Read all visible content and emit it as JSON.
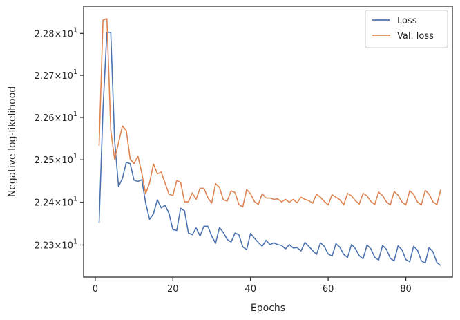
{
  "chart_data": {
    "type": "line",
    "xlabel": "Epochs",
    "ylabel": "Negative log-likelihood",
    "xlim": [
      -3,
      92
    ],
    "ylim": [
      22.225,
      22.865
    ],
    "y_scale": "log",
    "grid": false,
    "legend_position": "top-right",
    "x_ticks": [
      {
        "value": 0,
        "label": "0"
      },
      {
        "value": 20,
        "label": "20"
      },
      {
        "value": 40,
        "label": "40"
      },
      {
        "value": 60,
        "label": "60"
      },
      {
        "value": 80,
        "label": "80"
      }
    ],
    "y_ticks": [
      {
        "value": 22.3,
        "mantissa": "2.23",
        "base": "10",
        "exp": "1"
      },
      {
        "value": 22.4,
        "mantissa": "2.24",
        "base": "10",
        "exp": "1"
      },
      {
        "value": 22.5,
        "mantissa": "2.25",
        "base": "10",
        "exp": "1"
      },
      {
        "value": 22.6,
        "mantissa": "2.26",
        "base": "10",
        "exp": "1"
      },
      {
        "value": 22.7,
        "mantissa": "2.27",
        "base": "10",
        "exp": "1"
      },
      {
        "value": 22.8,
        "mantissa": "2.28",
        "base": "10",
        "exp": "1"
      }
    ],
    "series": [
      {
        "name": "Loss",
        "color": "#4c72b0",
        "x": [
          1,
          2,
          3,
          4,
          5,
          6,
          7,
          8,
          9,
          10,
          11,
          12,
          13,
          14,
          15,
          16,
          17,
          18,
          19,
          20,
          21,
          22,
          23,
          24,
          25,
          26,
          27,
          28,
          29,
          30,
          31,
          32,
          33,
          34,
          35,
          36,
          37,
          38,
          39,
          40,
          41,
          42,
          43,
          44,
          45,
          46,
          47,
          48,
          49,
          50,
          51,
          52,
          53,
          54,
          55,
          56,
          57,
          58,
          59,
          60,
          61,
          62,
          63,
          64,
          65,
          66,
          67,
          68,
          69,
          70,
          71,
          72,
          73,
          74,
          75,
          76,
          77,
          78,
          79,
          80,
          81,
          82,
          83,
          84,
          85,
          86,
          87,
          88,
          89
        ],
        "y": [
          22.352,
          22.62,
          22.803,
          22.802,
          22.545,
          22.437,
          22.456,
          22.494,
          22.491,
          22.452,
          22.449,
          22.453,
          22.398,
          22.36,
          22.373,
          22.406,
          22.387,
          22.393,
          22.374,
          22.336,
          22.334,
          22.386,
          22.38,
          22.328,
          22.324,
          22.34,
          22.321,
          22.344,
          22.344,
          22.321,
          22.304,
          22.341,
          22.329,
          22.313,
          22.307,
          22.328,
          22.324,
          22.296,
          22.289,
          22.327,
          22.316,
          22.306,
          22.297,
          22.311,
          22.301,
          22.305,
          22.301,
          22.299,
          22.291,
          22.301,
          22.293,
          22.294,
          22.286,
          22.306,
          22.297,
          22.287,
          22.278,
          22.305,
          22.297,
          22.279,
          22.274,
          22.303,
          22.295,
          22.278,
          22.271,
          22.301,
          22.292,
          22.275,
          22.268,
          22.3,
          22.291,
          22.271,
          22.265,
          22.299,
          22.29,
          22.269,
          22.263,
          22.298,
          22.289,
          22.266,
          22.261,
          22.297,
          22.288,
          22.263,
          22.258,
          22.294,
          22.284,
          22.259,
          22.252
        ]
      },
      {
        "name": "Val. loss",
        "color": "#dd8452",
        "x": [
          1,
          2,
          3,
          4,
          5,
          6,
          7,
          8,
          9,
          10,
          11,
          12,
          13,
          14,
          15,
          16,
          17,
          18,
          19,
          20,
          21,
          22,
          23,
          24,
          25,
          26,
          27,
          28,
          29,
          30,
          31,
          32,
          33,
          34,
          35,
          36,
          37,
          38,
          39,
          40,
          41,
          42,
          43,
          44,
          45,
          46,
          47,
          48,
          49,
          50,
          51,
          52,
          53,
          54,
          55,
          56,
          57,
          58,
          59,
          60,
          61,
          62,
          63,
          64,
          65,
          66,
          67,
          68,
          69,
          70,
          71,
          72,
          73,
          74,
          75,
          76,
          77,
          78,
          79,
          80,
          81,
          82,
          83,
          84,
          85,
          86,
          87,
          88,
          89
        ],
        "y": [
          22.533,
          22.832,
          22.835,
          22.57,
          22.501,
          22.54,
          22.58,
          22.569,
          22.502,
          22.491,
          22.509,
          22.468,
          22.42,
          22.446,
          22.49,
          22.467,
          22.471,
          22.445,
          22.419,
          22.416,
          22.451,
          22.447,
          22.401,
          22.401,
          22.422,
          22.407,
          22.433,
          22.433,
          22.411,
          22.398,
          22.444,
          22.435,
          22.406,
          22.403,
          22.427,
          22.423,
          22.395,
          22.389,
          22.43,
          22.42,
          22.402,
          22.395,
          22.42,
          22.41,
          22.41,
          22.407,
          22.408,
          22.401,
          22.407,
          22.4,
          22.407,
          22.399,
          22.412,
          22.407,
          22.404,
          22.398,
          22.419,
          22.412,
          22.402,
          22.394,
          22.418,
          22.412,
          22.406,
          22.394,
          22.421,
          22.415,
          22.404,
          22.396,
          22.421,
          22.415,
          22.402,
          22.395,
          22.424,
          22.416,
          22.401,
          22.394,
          22.425,
          22.417,
          22.401,
          22.394,
          22.427,
          22.419,
          22.401,
          22.394,
          22.428,
          22.419,
          22.401,
          22.395,
          22.43
        ]
      }
    ]
  }
}
